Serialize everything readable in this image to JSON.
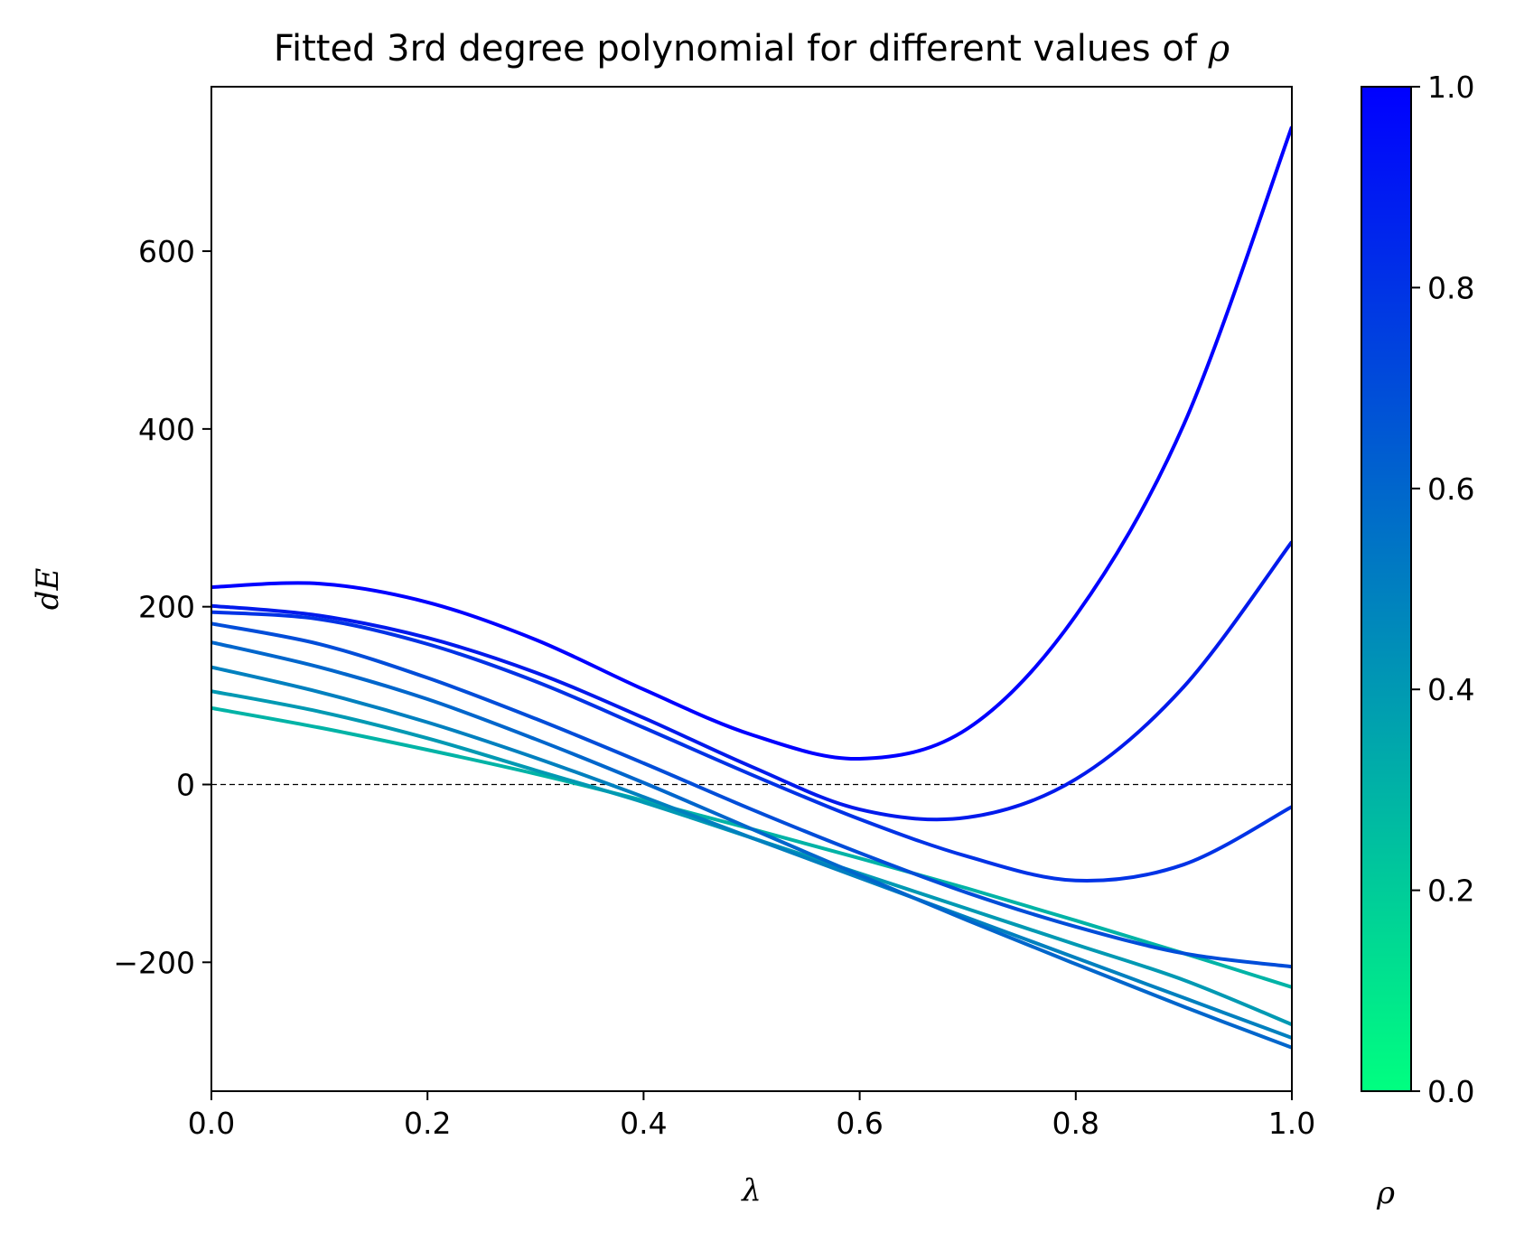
{
  "chart_data": {
    "type": "line",
    "title": "Fitted 3rd degree polynomial for different values of ρ",
    "title_prefix": "Fitted 3rd degree polynomial for different values of ",
    "title_symbol": "ρ",
    "xlabel": "λ",
    "ylabel": "dE",
    "xlim": [
      0.0,
      1.0
    ],
    "ylim": [
      -345,
      785
    ],
    "x_ticks": [
      0.0,
      0.2,
      0.4,
      0.6,
      0.8,
      1.0
    ],
    "x_tick_labels": [
      "0.0",
      "0.2",
      "0.4",
      "0.6",
      "0.8",
      "1.0"
    ],
    "y_ticks": [
      -200,
      0,
      200,
      400,
      600
    ],
    "y_tick_labels": [
      "−200",
      "0",
      "200",
      "400",
      "600"
    ],
    "zero_line": {
      "y": 0,
      "style": "dashed",
      "color": "#000000"
    },
    "grid": false,
    "colorbar": {
      "label": "ρ",
      "range": [
        0.0,
        1.0
      ],
      "ticks": [
        0.0,
        0.2,
        0.4,
        0.6,
        0.8,
        1.0
      ],
      "tick_labels": [
        "0.0",
        "0.2",
        "0.4",
        "0.6",
        "0.8",
        "1.0"
      ],
      "colormap": "winter",
      "color_low": "#00ff80",
      "color_high": "#0000ff"
    },
    "series": [
      {
        "rho": 0.3,
        "color": "#00b3a6",
        "points": [
          [
            0.0,
            86
          ],
          [
            0.1,
            64
          ],
          [
            0.2,
            39
          ],
          [
            0.3,
            12
          ],
          [
            0.4,
            -18
          ],
          [
            0.5,
            -50
          ],
          [
            0.6,
            -83
          ],
          [
            0.7,
            -117
          ],
          [
            0.8,
            -153
          ],
          [
            0.9,
            -190
          ],
          [
            1.0,
            -228
          ]
        ]
      },
      {
        "rho": 0.4,
        "color": "#0099b3",
        "points": [
          [
            0.0,
            105
          ],
          [
            0.1,
            82
          ],
          [
            0.2,
            52
          ],
          [
            0.3,
            16
          ],
          [
            0.4,
            -20
          ],
          [
            0.5,
            -60
          ],
          [
            0.6,
            -100
          ],
          [
            0.7,
            -140
          ],
          [
            0.8,
            -180
          ],
          [
            0.9,
            -220
          ],
          [
            1.0,
            -270
          ]
        ]
      },
      {
        "rho": 0.5,
        "color": "#0080bf",
        "points": [
          [
            0.0,
            132
          ],
          [
            0.1,
            104
          ],
          [
            0.2,
            70
          ],
          [
            0.3,
            30
          ],
          [
            0.4,
            -14
          ],
          [
            0.5,
            -60
          ],
          [
            0.6,
            -105
          ],
          [
            0.7,
            -150
          ],
          [
            0.8,
            -195
          ],
          [
            0.9,
            -240
          ],
          [
            1.0,
            -285
          ]
        ]
      },
      {
        "rho": 0.6,
        "color": "#0066cc",
        "points": [
          [
            0.0,
            160
          ],
          [
            0.1,
            132
          ],
          [
            0.2,
            96
          ],
          [
            0.3,
            51
          ],
          [
            0.4,
            2
          ],
          [
            0.5,
            -50
          ],
          [
            0.6,
            -102
          ],
          [
            0.7,
            -153
          ],
          [
            0.8,
            -202
          ],
          [
            0.9,
            -250
          ],
          [
            1.0,
            -296
          ]
        ]
      },
      {
        "rho": 0.7,
        "color": "#004dd9",
        "points": [
          [
            0.0,
            181
          ],
          [
            0.1,
            158
          ],
          [
            0.2,
            120
          ],
          [
            0.3,
            74
          ],
          [
            0.4,
            24
          ],
          [
            0.5,
            -28
          ],
          [
            0.6,
            -77
          ],
          [
            0.7,
            -122
          ],
          [
            0.8,
            -160
          ],
          [
            0.9,
            -190
          ],
          [
            1.0,
            -205
          ]
        ]
      },
      {
        "rho": 0.8,
        "color": "#0033e6",
        "points": [
          [
            0.0,
            194
          ],
          [
            0.1,
            186
          ],
          [
            0.2,
            158
          ],
          [
            0.3,
            116
          ],
          [
            0.4,
            64
          ],
          [
            0.5,
            11
          ],
          [
            0.6,
            -39
          ],
          [
            0.7,
            -81
          ],
          [
            0.8,
            -108
          ],
          [
            0.9,
            -90
          ],
          [
            1.0,
            -25
          ]
        ]
      },
      {
        "rho": 0.9,
        "color": "#001aec",
        "points": [
          [
            0.0,
            201
          ],
          [
            0.1,
            190
          ],
          [
            0.2,
            165
          ],
          [
            0.3,
            126
          ],
          [
            0.4,
            75
          ],
          [
            0.5,
            20
          ],
          [
            0.6,
            -28
          ],
          [
            0.7,
            -37
          ],
          [
            0.8,
            6
          ],
          [
            0.9,
            110
          ],
          [
            1.0,
            273
          ]
        ]
      },
      {
        "rho": 1.0,
        "color": "#0000ff",
        "points": [
          [
            0.0,
            222
          ],
          [
            0.1,
            226
          ],
          [
            0.2,
            205
          ],
          [
            0.3,
            163
          ],
          [
            0.4,
            107
          ],
          [
            0.5,
            56
          ],
          [
            0.6,
            29
          ],
          [
            0.7,
            63
          ],
          [
            0.8,
            190
          ],
          [
            0.9,
            405
          ],
          [
            1.0,
            740
          ]
        ]
      }
    ]
  }
}
